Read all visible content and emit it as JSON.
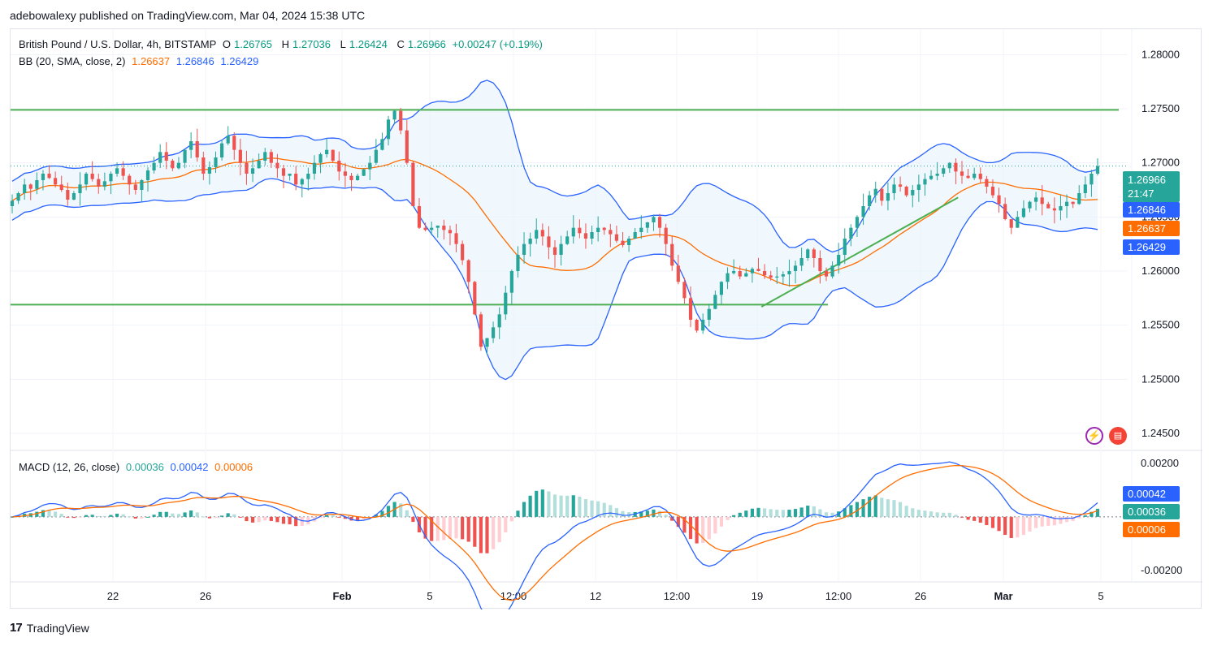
{
  "attribution": "adebowalexy published on TradingView.com, Mar 04, 2024 15:38 UTC",
  "legend": {
    "symbol": "British Pound / U.S. Dollar, 4h, BITSTAMP",
    "o_label": "O",
    "o": "1.26765",
    "h_label": "H",
    "h": "1.27036",
    "l_label": "L",
    "l": "1.26424",
    "c_label": "C",
    "c": "1.26966",
    "change": "+0.00247 (+0.19%)",
    "bb_label": "BB (20, SMA, close, 2)",
    "bb_basis": "1.26637",
    "bb_upper": "1.26846",
    "bb_lower": "1.26429",
    "macd_label": "MACD (12, 26, close)",
    "macd_hist": "0.00036",
    "macd_line": "0.00042",
    "macd_signal": "0.00006"
  },
  "price_tags": {
    "last": "1.26966",
    "countdown": "21:47",
    "upper": "1.26846",
    "basis": "1.26637",
    "lower": "1.26429"
  },
  "macd_tags": {
    "line": "0.00042",
    "hist": "0.00036",
    "signal": "0.00006"
  },
  "footer": {
    "brand": "TradingView",
    "brand_mark": "17"
  },
  "colors": {
    "up": "#26a69a",
    "down": "#ef5350",
    "bb_band": "#2962ff",
    "bb_basis": "#ff6d00",
    "hline": "#4caf50",
    "fill": "#e3f2fd",
    "hist_up": "#26a69a",
    "hist_up_light": "#b2dfdb",
    "hist_down": "#ef5350",
    "hist_down_light": "#ffcdd2"
  },
  "chart_data": {
    "type": "candlestick",
    "price_axis": {
      "ticks": [
        "1.28000",
        "1.27500",
        "1.27000",
        "1.26500",
        "1.26000",
        "1.25500",
        "1.25000",
        "1.24500"
      ],
      "range": [
        1.2435,
        1.2816
      ]
    },
    "macd_axis": {
      "ticks": [
        "0.00200",
        "-0.00200"
      ],
      "range": [
        -0.0024,
        0.0023
      ]
    },
    "time_axis": {
      "ticks": [
        "22",
        "26",
        "Feb",
        "5",
        "12:00",
        "12",
        "12:00",
        "19",
        "12:00",
        "26",
        "Mar",
        "5"
      ]
    },
    "horizontal_lines": [
      1.2749,
      1.2569
    ],
    "trend_line": {
      "from": [
        1.2567,
        0.63
      ],
      "to": [
        1.2668,
        0.795
      ]
    },
    "closes": [
      1.2665,
      1.2672,
      1.268,
      1.2676,
      1.2684,
      1.269,
      1.2686,
      1.268,
      1.2675,
      1.2666,
      1.2672,
      1.268,
      1.269,
      1.2685,
      1.2678,
      1.2683,
      1.269,
      1.2695,
      1.2688,
      1.268,
      1.2675,
      1.2684,
      1.2693,
      1.27,
      1.271,
      1.2702,
      1.2695,
      1.27,
      1.2712,
      1.272,
      1.2705,
      1.269,
      1.2696,
      1.2705,
      1.2718,
      1.2725,
      1.2712,
      1.27,
      1.269,
      1.2695,
      1.2702,
      1.271,
      1.27,
      1.2695,
      1.2688,
      1.269,
      1.268,
      1.2685,
      1.269,
      1.27,
      1.2708,
      1.2712,
      1.2702,
      1.2692,
      1.2688,
      1.2684,
      1.2688,
      1.2694,
      1.27,
      1.2712,
      1.2722,
      1.274,
      1.2748,
      1.273,
      1.27,
      1.266,
      1.264,
      1.2638,
      1.264,
      1.2642,
      1.2638,
      1.2635,
      1.2625,
      1.261,
      1.259,
      1.256,
      1.253,
      1.2538,
      1.2548,
      1.256,
      1.258,
      1.26,
      1.2615,
      1.2625,
      1.263,
      1.2638,
      1.2632,
      1.2622,
      1.2615,
      1.2625,
      1.2632,
      1.264,
      1.2635,
      1.263,
      1.2636,
      1.264,
      1.2638,
      1.2634,
      1.2628,
      1.2624,
      1.263,
      1.2636,
      1.264,
      1.2645,
      1.265,
      1.264,
      1.2625,
      1.2605,
      1.259,
      1.2575,
      1.2555,
      1.2545,
      1.2555,
      1.2565,
      1.2578,
      1.259,
      1.2598,
      1.26,
      1.2595,
      1.2598,
      1.2602,
      1.26,
      1.2596,
      1.2594,
      1.2595,
      1.2597,
      1.26,
      1.2605,
      1.2612,
      1.262,
      1.2612,
      1.26,
      1.2595,
      1.2605,
      1.2615,
      1.263,
      1.264,
      1.265,
      1.266,
      1.267,
      1.2676,
      1.2665,
      1.2672,
      1.268,
      1.2678,
      1.267,
      1.2675,
      1.268,
      1.2685,
      1.2688,
      1.269,
      1.2695,
      1.27,
      1.2692,
      1.2688,
      1.2686,
      1.269,
      1.2685,
      1.2678,
      1.267,
      1.2662,
      1.2648,
      1.264,
      1.265,
      1.2658,
      1.2664,
      1.2668,
      1.2662,
      1.2658,
      1.2656,
      1.266,
      1.2664,
      1.2662,
      1.2672,
      1.268,
      1.269,
      1.2697
    ]
  }
}
